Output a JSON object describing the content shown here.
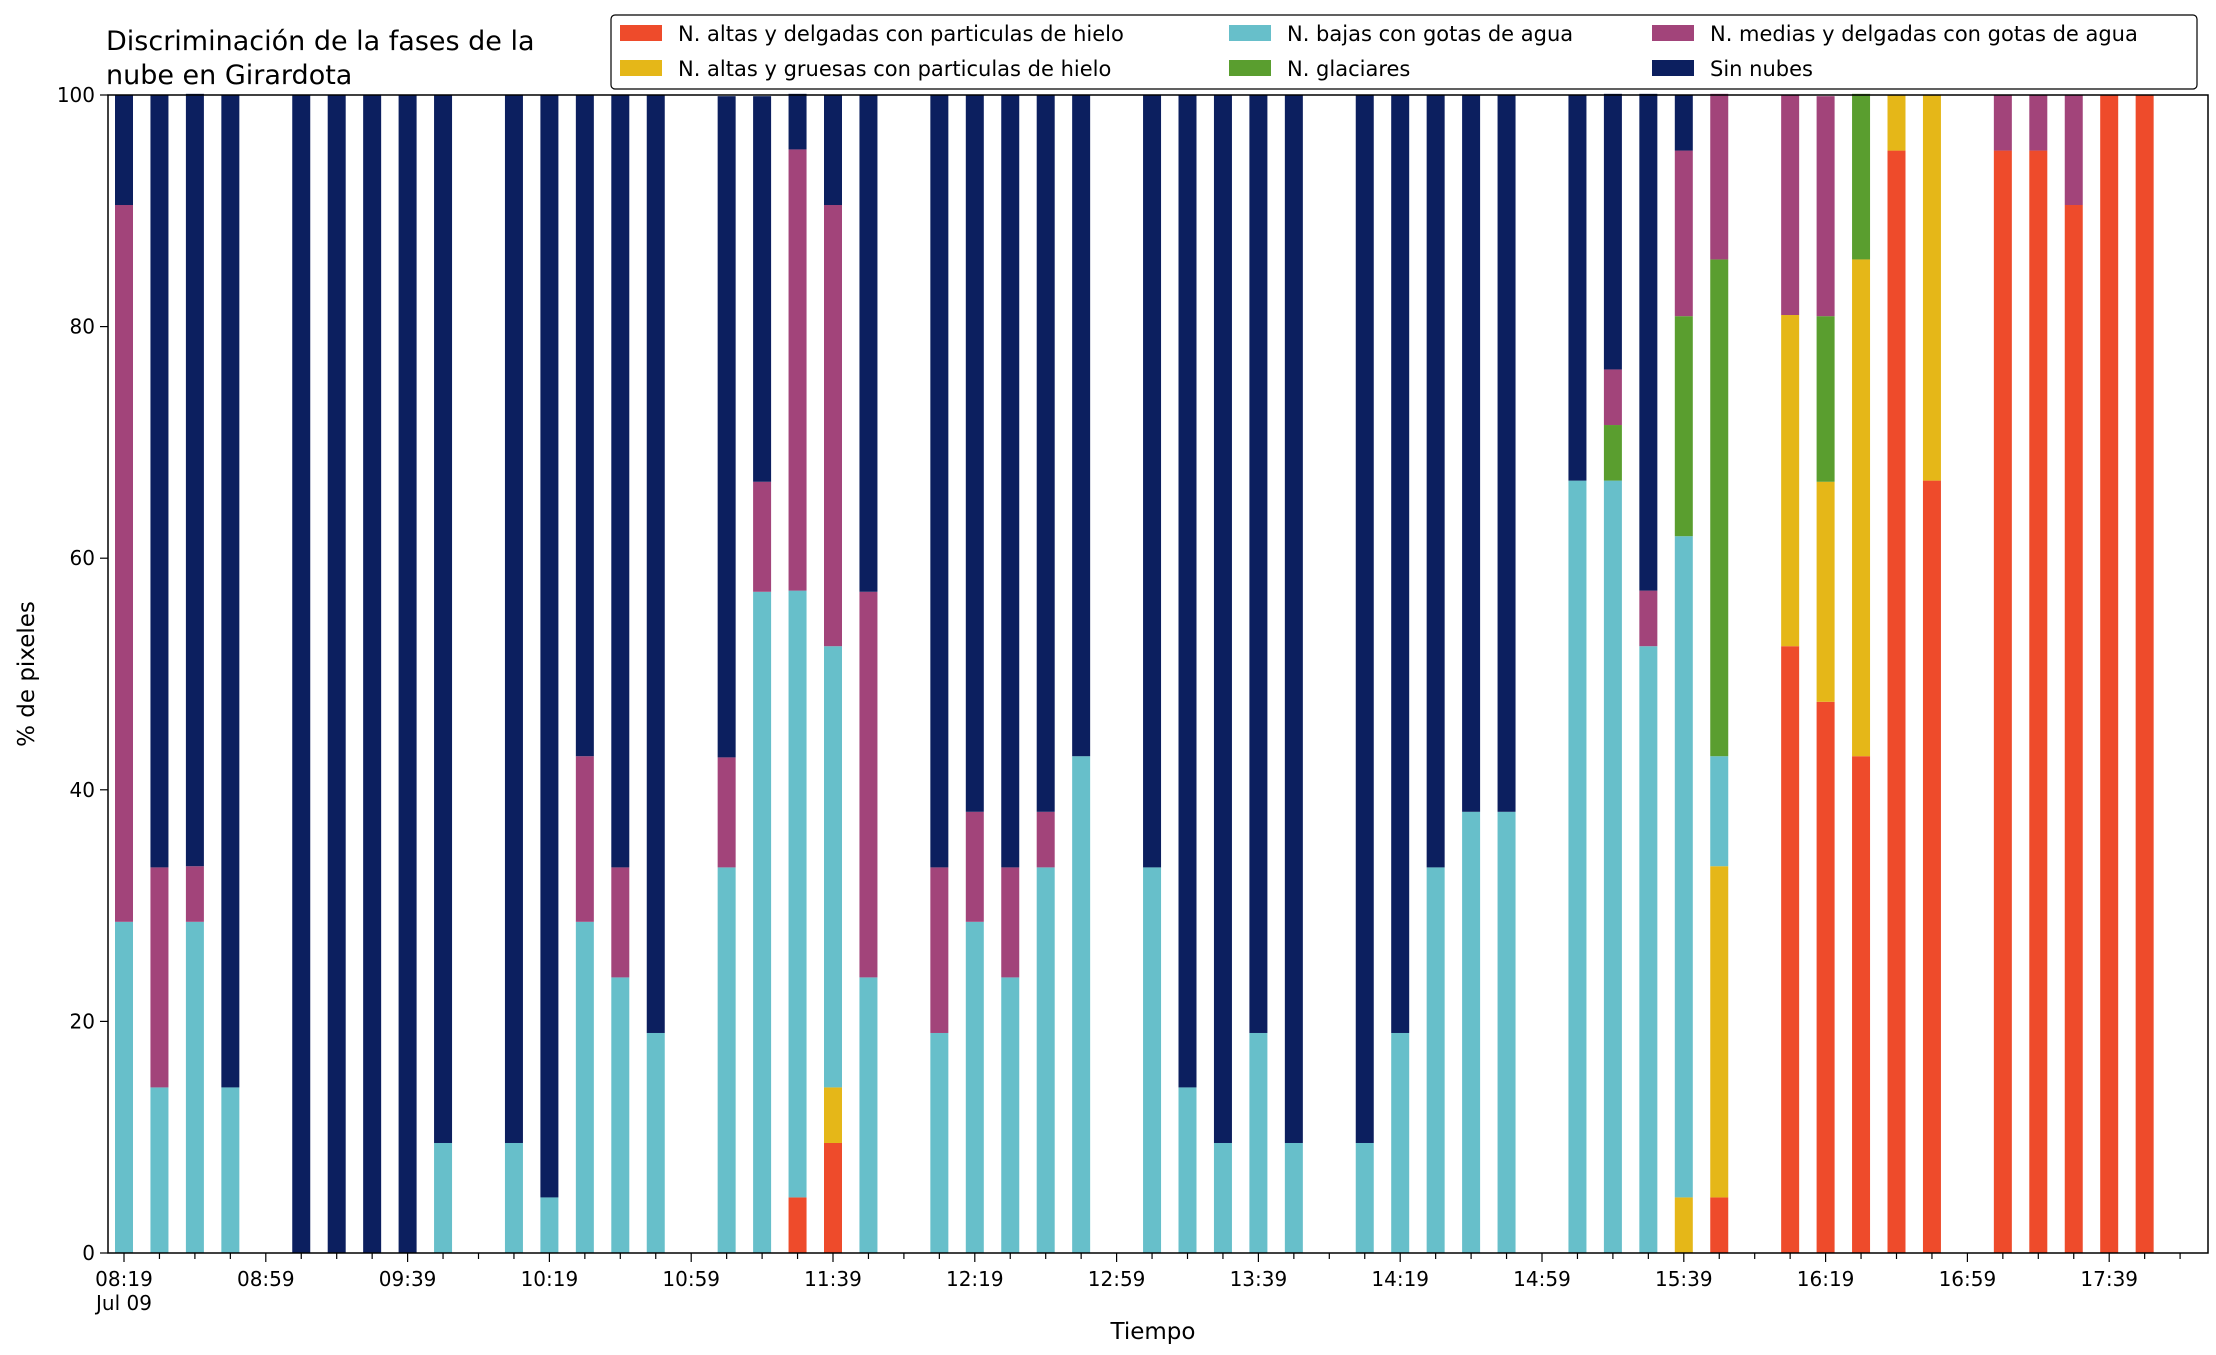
{
  "chart_data": {
    "type": "bar",
    "stacked": true,
    "title": "Discriminación de la fases de la nube en Girardota",
    "title_lines": [
      "Discriminación de la fases de la",
      "nube en Girardota"
    ],
    "xlabel": "Tiempo",
    "ylabel": "% de pixeles",
    "ylim": [
      0,
      100
    ],
    "yticks": [
      0,
      20,
      40,
      60,
      80,
      100
    ],
    "date_label": "Jul 09",
    "xticks": [
      "08:19",
      "08:59",
      "09:39",
      "10:19",
      "10:59",
      "11:39",
      "12:19",
      "12:59",
      "13:39",
      "14:19",
      "14:59",
      "15:39",
      "16:19",
      "16:59",
      "17:39"
    ],
    "legend_position": "top-right",
    "grid": false,
    "categories": [
      "08:19",
      "08:29",
      "08:39",
      "08:49",
      "08:59",
      "09:09",
      "09:19",
      "09:29",
      "09:39",
      "09:49",
      "09:59",
      "10:09",
      "10:19",
      "10:29",
      "10:39",
      "10:49",
      "10:59",
      "11:09",
      "11:19",
      "11:29",
      "11:39",
      "11:49",
      "11:59",
      "12:09",
      "12:19",
      "12:29",
      "12:39",
      "12:49",
      "12:59",
      "13:09",
      "13:19",
      "13:29",
      "13:39",
      "13:49",
      "13:59",
      "14:09",
      "14:19",
      "14:29",
      "14:39",
      "14:49",
      "14:59",
      "15:09",
      "15:19",
      "15:29",
      "15:39",
      "15:49",
      "15:59",
      "16:09",
      "16:19",
      "16:29",
      "16:39",
      "16:49",
      "16:59",
      "17:09",
      "17:19",
      "17:29",
      "17:39",
      "17:49"
    ],
    "series": [
      {
        "name": "N. altas y delgadas con particulas de hielo",
        "color": "#ee4b2b",
        "values": [
          0,
          0,
          0,
          0,
          null,
          0,
          0,
          0,
          0,
          0,
          null,
          0,
          0,
          0,
          0,
          0,
          null,
          0,
          0,
          4.8,
          9.5,
          0,
          null,
          0,
          0,
          0,
          0,
          0,
          null,
          0,
          0,
          0,
          0,
          0,
          null,
          0,
          0,
          0,
          0,
          0,
          null,
          0,
          0,
          0,
          0,
          4.8,
          null,
          52.4,
          47.6,
          42.9,
          95.2,
          66.7,
          null,
          95.2,
          95.2,
          90.5,
          100,
          100
        ]
      },
      {
        "name": "N. altas y gruesas con particulas de hielo",
        "color": "#e5b718",
        "values": [
          0,
          0,
          0,
          0,
          null,
          0,
          0,
          0,
          0,
          0,
          null,
          0,
          0,
          0,
          0,
          0,
          null,
          0,
          0,
          0,
          4.8,
          0,
          null,
          0,
          0,
          0,
          0,
          0,
          null,
          0,
          0,
          0,
          0,
          0,
          null,
          0,
          0,
          0,
          0,
          0,
          null,
          0,
          0,
          0,
          4.8,
          28.6,
          null,
          28.6,
          19.0,
          42.9,
          4.8,
          33.3,
          null,
          0,
          0,
          0,
          0,
          0
        ]
      },
      {
        "name": "N. bajas con gotas de agua",
        "color": "#67bfca",
        "values": [
          28.6,
          14.3,
          28.6,
          14.3,
          null,
          0,
          0,
          0,
          0,
          9.5,
          null,
          9.5,
          4.8,
          28.6,
          23.8,
          19.0,
          null,
          33.3,
          57.1,
          52.4,
          38.1,
          23.8,
          null,
          19.0,
          28.6,
          23.8,
          33.3,
          42.9,
          null,
          33.3,
          14.3,
          9.5,
          19.0,
          9.5,
          null,
          9.5,
          19.0,
          33.3,
          38.1,
          38.1,
          null,
          66.7,
          66.7,
          52.4,
          57.1,
          9.5,
          null,
          0,
          0,
          0,
          0,
          0,
          null,
          0,
          0,
          0,
          0,
          0
        ]
      },
      {
        "name": "N. glaciares",
        "color": "#5a9e2f",
        "values": [
          0,
          0,
          0,
          0,
          null,
          0,
          0,
          0,
          0,
          0,
          null,
          0,
          0,
          0,
          0,
          0,
          null,
          0,
          0,
          0,
          0,
          0,
          null,
          0,
          0,
          0,
          0,
          0,
          null,
          0,
          0,
          0,
          0,
          0,
          null,
          0,
          0,
          0,
          0,
          0,
          null,
          0,
          4.8,
          0,
          19.0,
          42.9,
          null,
          0,
          14.3,
          14.3,
          0,
          0,
          null,
          0,
          0,
          0,
          0,
          0
        ]
      },
      {
        "name": "N. medias y delgadas con gotas de agua",
        "color": "#a2447a",
        "values": [
          61.9,
          19.0,
          4.8,
          0,
          null,
          0,
          0,
          0,
          0,
          0,
          null,
          0,
          0,
          14.3,
          9.5,
          0,
          null,
          9.5,
          9.5,
          38.1,
          38.1,
          33.3,
          null,
          14.3,
          9.5,
          9.5,
          4.8,
          0,
          null,
          0,
          0,
          0,
          0,
          0,
          null,
          0,
          0,
          0,
          0,
          0,
          null,
          0,
          4.8,
          4.8,
          14.3,
          14.3,
          null,
          19.0,
          19.0,
          0,
          0,
          0,
          null,
          4.8,
          4.8,
          9.5,
          0,
          0
        ]
      },
      {
        "name": "Sin nubes",
        "color": "#0c1f5f",
        "values": [
          9.5,
          66.7,
          66.7,
          85.7,
          null,
          100,
          100,
          100,
          100,
          90.5,
          null,
          90.5,
          95.2,
          57.1,
          66.7,
          81.0,
          null,
          57.1,
          33.3,
          4.8,
          9.5,
          42.9,
          null,
          66.7,
          61.9,
          66.7,
          61.9,
          57.1,
          null,
          66.7,
          85.7,
          90.5,
          81.0,
          90.5,
          null,
          90.5,
          81.0,
          66.7,
          61.9,
          61.9,
          null,
          33.3,
          23.8,
          42.9,
          4.8,
          0,
          null,
          0,
          0,
          0,
          0,
          0,
          null,
          0,
          0,
          0,
          0,
          0
        ]
      }
    ]
  }
}
